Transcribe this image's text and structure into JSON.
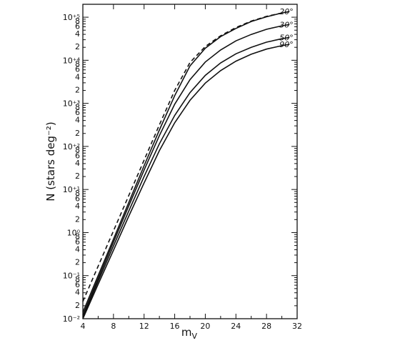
{
  "chart_data": {
    "type": "line",
    "xlabel": "m",
    "xlabel_sub": "V",
    "ylabel": "N (stars deg⁻²)",
    "x_ticks": [
      "4",
      "8",
      "12",
      "16",
      "20",
      "24",
      "28",
      "32"
    ],
    "y_decade_labels": [
      "10⁻²",
      "10⁻¹",
      "10⁰",
      "10⁺¹",
      "10⁺²",
      "10⁺³",
      "10⁺⁴",
      "10⁺⁵"
    ],
    "y_minor_labels": [
      "2",
      "4",
      "6",
      "8"
    ],
    "xlim": [
      4,
      32
    ],
    "ylim_log10": [
      -2,
      5.3
    ],
    "y_scale": "log",
    "grid": false,
    "series": [
      {
        "name": "20°",
        "style": "dashed",
        "x": [
          4,
          6,
          8,
          10,
          12,
          14,
          16,
          18,
          20,
          22,
          24,
          26,
          28,
          30,
          31
        ],
        "log10_y": [
          -1.6,
          -0.78,
          0.04,
          0.86,
          1.68,
          2.5,
          3.3,
          3.95,
          4.32,
          4.57,
          4.76,
          4.91,
          5.02,
          5.1,
          5.13
        ]
      },
      {
        "name": "20°",
        "style": "solid",
        "x": [
          4,
          6,
          8,
          10,
          12,
          14,
          16,
          18,
          20,
          22,
          24,
          26,
          28,
          30,
          31
        ],
        "log10_y": [
          -1.85,
          -1.0,
          -0.15,
          0.7,
          1.55,
          2.38,
          3.18,
          3.87,
          4.28,
          4.55,
          4.74,
          4.9,
          5.01,
          5.1,
          5.13
        ]
      },
      {
        "name": "30°",
        "style": "solid",
        "x": [
          4,
          6,
          8,
          10,
          12,
          14,
          16,
          18,
          20,
          22,
          24,
          26,
          28,
          30,
          31
        ],
        "log10_y": [
          -1.92,
          -1.07,
          -0.22,
          0.62,
          1.45,
          2.25,
          2.98,
          3.55,
          3.96,
          4.24,
          4.45,
          4.6,
          4.72,
          4.8,
          4.83
        ]
      },
      {
        "name": "50°",
        "style": "solid",
        "x": [
          4,
          6,
          8,
          10,
          12,
          14,
          16,
          18,
          20,
          22,
          24,
          26,
          28,
          30,
          31
        ],
        "log10_y": [
          -1.96,
          -1.13,
          -0.31,
          0.5,
          1.3,
          2.06,
          2.72,
          3.25,
          3.65,
          3.94,
          4.15,
          4.3,
          4.42,
          4.5,
          4.53
        ]
      },
      {
        "name": "90°",
        "style": "solid",
        "x": [
          4,
          6,
          8,
          10,
          12,
          14,
          16,
          18,
          20,
          22,
          24,
          26,
          28,
          30,
          31
        ],
        "log10_y": [
          -2.0,
          -1.2,
          -0.41,
          0.38,
          1.15,
          1.9,
          2.55,
          3.07,
          3.47,
          3.76,
          3.98,
          4.14,
          4.26,
          4.34,
          4.37
        ]
      }
    ]
  }
}
